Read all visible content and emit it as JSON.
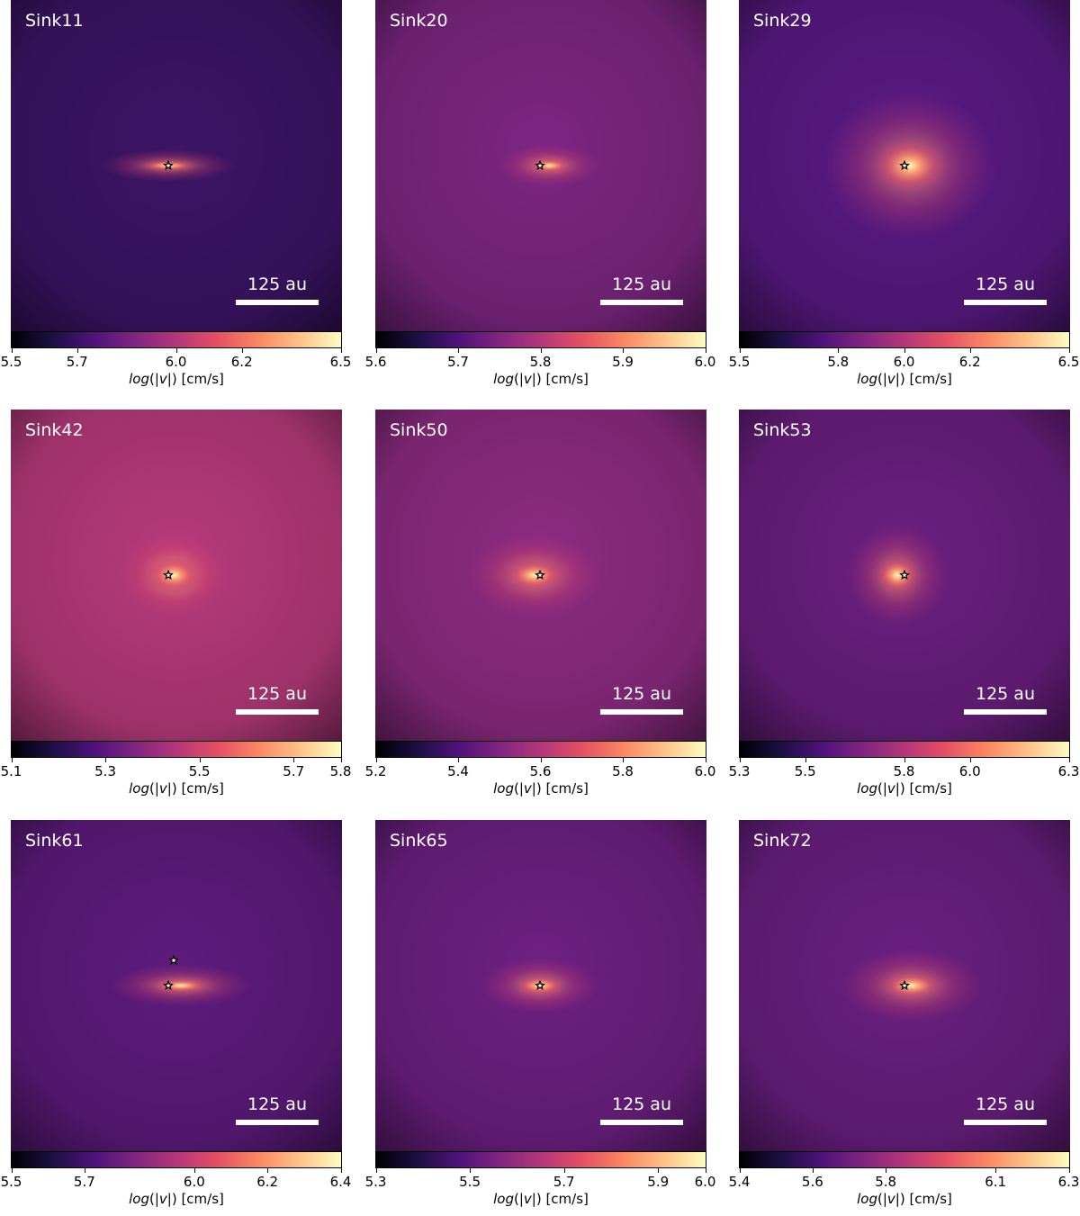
{
  "chart_data": [
    {
      "type": "heatmap",
      "title": "Sink11",
      "scalebar": "125 au",
      "colorbar_label": "log(|v|) [cm/s]",
      "cmap": "magma",
      "clim": [
        5.5,
        6.5
      ],
      "ticks": [
        5.5,
        5.7,
        6.0,
        6.2,
        6.5
      ],
      "tick_labels": [
        "5.5",
        "5.7",
        "6.0",
        "6.2",
        "6.5"
      ],
      "bg": "#3d1466",
      "sinks": [
        [
          0,
          0
        ]
      ]
    },
    {
      "type": "heatmap",
      "title": "Sink20",
      "scalebar": "125 au",
      "colorbar_label": "log(|v|) [cm/s]",
      "cmap": "magma",
      "clim": [
        5.6,
        6.0
      ],
      "ticks": [
        5.6,
        5.7,
        5.8,
        5.9,
        6.0
      ],
      "tick_labels": [
        "5.6",
        "5.7",
        "5.8",
        "5.9",
        "6.0"
      ],
      "bg": "#7d2682",
      "sinks": [
        [
          0,
          0
        ]
      ]
    },
    {
      "type": "heatmap",
      "title": "Sink29",
      "scalebar": "125 au",
      "colorbar_label": "log(|v|) [cm/s]",
      "cmap": "magma",
      "clim": [
        5.5,
        6.5
      ],
      "ticks": [
        5.5,
        5.8,
        6.0,
        6.2,
        6.5
      ],
      "tick_labels": [
        "5.5",
        "5.8",
        "6.0",
        "6.2",
        "6.5"
      ],
      "bg": "#5a1a84",
      "sinks": [
        [
          0,
          0
        ]
      ]
    },
    {
      "type": "heatmap",
      "title": "Sink42",
      "scalebar": "125 au",
      "colorbar_label": "log(|v|) [cm/s]",
      "cmap": "magma",
      "clim": [
        5.1,
        5.8
      ],
      "ticks": [
        5.1,
        5.3,
        5.5,
        5.7,
        5.8
      ],
      "tick_labels": [
        "5.1",
        "5.3",
        "5.5",
        "5.7",
        "5.8"
      ],
      "bg": "#b83a7c",
      "sinks": [
        [
          0,
          0
        ]
      ]
    },
    {
      "type": "heatmap",
      "title": "Sink50",
      "scalebar": "125 au",
      "colorbar_label": "log(|v|) [cm/s]",
      "cmap": "magma",
      "clim": [
        5.2,
        6.0
      ],
      "ticks": [
        5.2,
        5.4,
        5.6,
        5.8,
        6.0
      ],
      "tick_labels": [
        "5.2",
        "5.4",
        "5.6",
        "5.8",
        "6.0"
      ],
      "bg": "#8e2b82",
      "sinks": [
        [
          0,
          0
        ]
      ]
    },
    {
      "type": "heatmap",
      "title": "Sink53",
      "scalebar": "125 au",
      "colorbar_label": "log(|v|) [cm/s]",
      "cmap": "magma",
      "clim": [
        5.3,
        6.3
      ],
      "ticks": [
        5.3,
        5.5,
        5.8,
        6.0,
        6.3
      ],
      "tick_labels": [
        "5.3",
        "5.5",
        "5.8",
        "6.0",
        "6.3"
      ],
      "bg": "#6b1f80",
      "sinks": [
        [
          0,
          0
        ]
      ]
    },
    {
      "type": "heatmap",
      "title": "Sink61",
      "scalebar": "125 au",
      "colorbar_label": "log(|v|) [cm/s]",
      "cmap": "magma",
      "clim": [
        5.5,
        6.4
      ],
      "ticks": [
        5.5,
        5.7,
        6.0,
        6.2,
        6.4
      ],
      "tick_labels": [
        "5.5",
        "5.7",
        "6.0",
        "6.2",
        "6.4"
      ],
      "bg": "#5e1b7d",
      "sinks": [
        [
          0,
          0
        ],
        [
          6,
          28
        ]
      ]
    },
    {
      "type": "heatmap",
      "title": "Sink65",
      "scalebar": "125 au",
      "colorbar_label": "log(|v|) [cm/s]",
      "cmap": "magma",
      "clim": [
        5.3,
        6.0
      ],
      "ticks": [
        5.3,
        5.5,
        5.7,
        5.9,
        6.0
      ],
      "tick_labels": [
        "5.3",
        "5.5",
        "5.7",
        "5.9",
        "6.0"
      ],
      "bg": "#6e2082",
      "sinks": [
        [
          0,
          0
        ]
      ]
    },
    {
      "type": "heatmap",
      "title": "Sink72",
      "scalebar": "125 au",
      "colorbar_label": "log(|v|) [cm/s]",
      "cmap": "magma",
      "clim": [
        5.4,
        6.3
      ],
      "ticks": [
        5.4,
        5.6,
        5.8,
        6.1,
        6.3
      ],
      "tick_labels": [
        "5.4",
        "5.6",
        "5.8",
        "6.1",
        "6.3"
      ],
      "bg": "#6a1f80",
      "sinks": [
        [
          0,
          0
        ]
      ]
    }
  ]
}
